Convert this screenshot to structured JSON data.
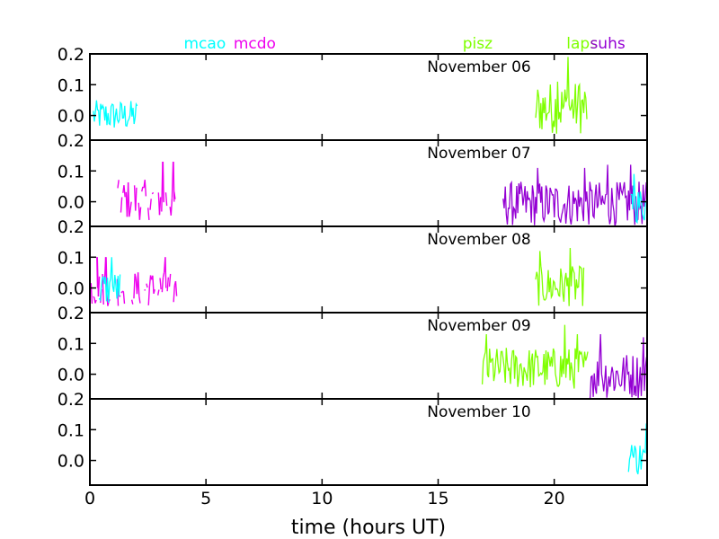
{
  "chart_data": {
    "type": "line",
    "xlabel": "time (hours UT)",
    "xlim": [
      0,
      24
    ],
    "ylim": [
      -0.08,
      0.2
    ],
    "x_ticks": [
      0,
      5,
      10,
      15,
      20
    ],
    "y_ticks": [
      0.0,
      0.1,
      0.2
    ],
    "stations": [
      {
        "name": "mcao",
        "color": "#00ffff",
        "x": 4.95
      },
      {
        "name": "mcdo",
        "color": "#ee00ee",
        "x": 7.1
      },
      {
        "name": "pisz",
        "color": "#7fff00",
        "x": 16.7
      },
      {
        "name": "laps",
        "color": "#7fff00",
        "x": 21.2
      },
      {
        "name": "suhs",
        "color": "#9400d3",
        "x": 22.3
      }
    ],
    "panels": [
      {
        "date": "November 06",
        "series": [
          {
            "station": "mcao",
            "x_range": [
              0.15,
              2.05
            ],
            "y_min": -0.05,
            "y_max": 0.09,
            "style": "solid",
            "peaks": []
          },
          {
            "station": "pisz",
            "x_range": [
              19.2,
              21.45
            ],
            "y_min": -0.06,
            "y_max": 0.2,
            "style": "solid",
            "peaks": [
              [
                20.6,
                0.19
              ],
              [
                20.15,
                0.11
              ],
              [
                21.1,
                0.1
              ]
            ]
          }
        ]
      },
      {
        "date": "November 07",
        "series": [
          {
            "station": "mcdo",
            "x_range": [
              1.2,
              3.8
            ],
            "y_min": -0.06,
            "y_max": 0.13,
            "style": "dashed",
            "peaks": [
              [
                3.15,
                0.13
              ],
              [
                3.6,
                0.13
              ]
            ]
          },
          {
            "station": "suhs",
            "x_range": [
              17.8,
              24.0
            ],
            "y_min": -0.08,
            "y_max": 0.12,
            "style": "solid",
            "peaks": [
              [
                19.3,
                0.11
              ],
              [
                21.3,
                0.11
              ],
              [
                22.3,
                0.12
              ],
              [
                23.3,
                0.12
              ]
            ]
          },
          {
            "station": "mcao",
            "x_range": [
              23.3,
              24.0
            ],
            "y_min": -0.07,
            "y_max": 0.09,
            "style": "solid",
            "peaks": [
              [
                23.45,
                0.09
              ]
            ]
          }
        ]
      },
      {
        "date": "November 08",
        "series": [
          {
            "station": "mcdo",
            "x_range": [
              0.05,
              3.8
            ],
            "y_min": -0.06,
            "y_max": 0.1,
            "style": "dashed",
            "peaks": [
              [
                0.3,
                0.1
              ],
              [
                0.7,
                0.1
              ],
              [
                3.25,
                0.1
              ]
            ]
          },
          {
            "station": "mcao",
            "x_range": [
              0.4,
              1.3
            ],
            "y_min": -0.06,
            "y_max": 0.1,
            "style": "solid",
            "peaks": [
              [
                0.95,
                0.1
              ]
            ]
          },
          {
            "station": "pisz",
            "x_range": [
              19.2,
              21.3
            ],
            "y_min": -0.06,
            "y_max": 0.13,
            "style": "solid",
            "peaks": [
              [
                19.4,
                0.12
              ],
              [
                20.7,
                0.13
              ]
            ]
          }
        ]
      },
      {
        "date": "November 09",
        "series": [
          {
            "station": "pisz",
            "x_range": [
              16.9,
              21.45
            ],
            "y_min": -0.05,
            "y_max": 0.16,
            "style": "solid",
            "peaks": [
              [
                20.45,
                0.16
              ],
              [
                17.1,
                0.13
              ],
              [
                21.0,
                0.13
              ]
            ]
          },
          {
            "station": "suhs",
            "x_range": [
              21.5,
              24.0
            ],
            "y_min": -0.08,
            "y_max": 0.13,
            "style": "solid",
            "peaks": [
              [
                22.0,
                0.13
              ],
              [
                23.85,
                0.12
              ]
            ]
          }
        ]
      },
      {
        "date": "November 10",
        "series": [
          {
            "station": "mcao",
            "x_range": [
              23.2,
              24.0
            ],
            "y_min": -0.05,
            "y_max": 0.12,
            "style": "solid",
            "peaks": [
              [
                23.95,
                0.12
              ],
              [
                23.35,
                0.05
              ]
            ]
          }
        ]
      }
    ]
  }
}
